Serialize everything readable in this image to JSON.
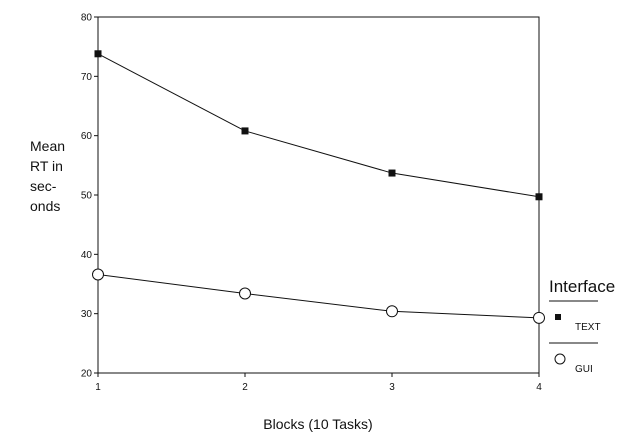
{
  "chart_data": {
    "type": "line",
    "title": "",
    "xlabel": "Blocks (10 Tasks)",
    "ylabel_lines": [
      "Mean",
      "RT in",
      "sec-",
      "onds"
    ],
    "x": [
      1,
      2,
      3,
      4
    ],
    "xlim": [
      1,
      4
    ],
    "ylim": [
      20,
      80
    ],
    "y_ticks": [
      20,
      30,
      40,
      50,
      60,
      70,
      80
    ],
    "grid": false,
    "legend_position": "right",
    "legend_title": "Interface",
    "series": [
      {
        "name": "TEXT",
        "marker": "filled-square",
        "values": [
          73.8,
          60.8,
          53.7,
          49.7
        ]
      },
      {
        "name": "GUI",
        "marker": "open-circle",
        "values": [
          36.6,
          33.4,
          30.4,
          29.3
        ]
      }
    ]
  }
}
